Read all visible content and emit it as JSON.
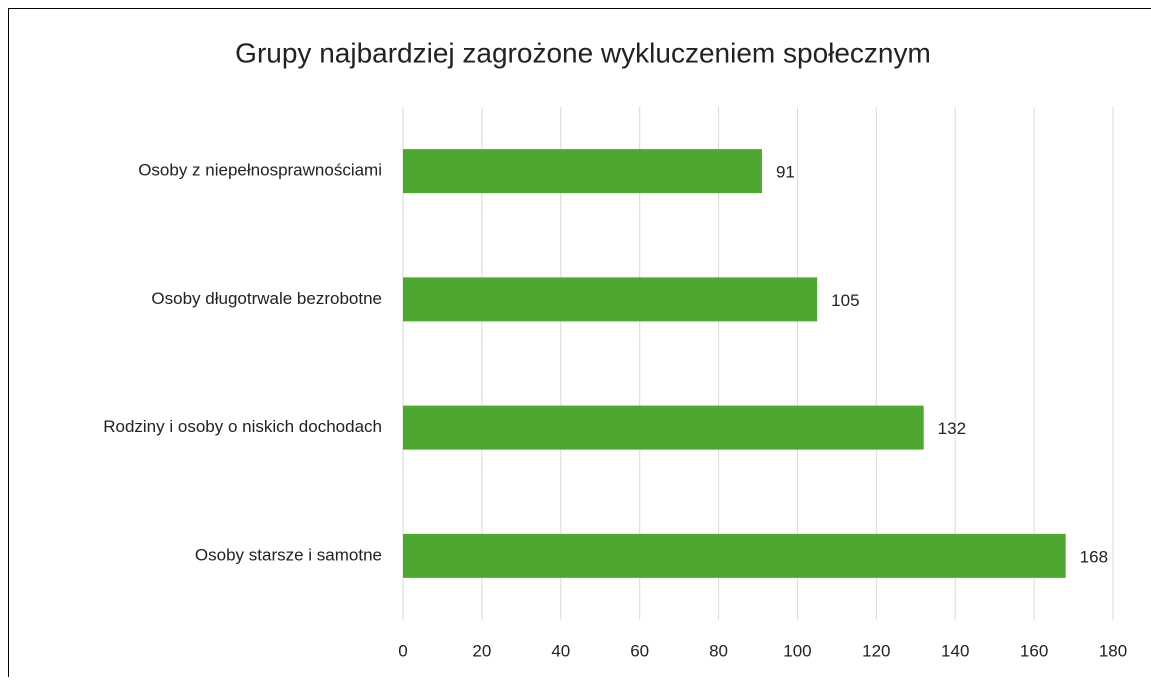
{
  "chart_data": {
    "type": "hbar",
    "title": "Grupy najbardziej zagrożone wykluczeniem społecznym",
    "categories": [
      "Osoby z niepełnosprawnościami",
      "Osoby długotrwale bezrobotne",
      "Rodziny i osoby o niskich dochodach",
      "Osoby starsze i samotne"
    ],
    "values": [
      91,
      105,
      132,
      168
    ],
    "color": "#4ea72e",
    "xlim": [
      0,
      180
    ],
    "xticks": [
      0,
      20,
      40,
      60,
      80,
      100,
      120,
      140,
      160,
      180
    ],
    "grid": true
  }
}
